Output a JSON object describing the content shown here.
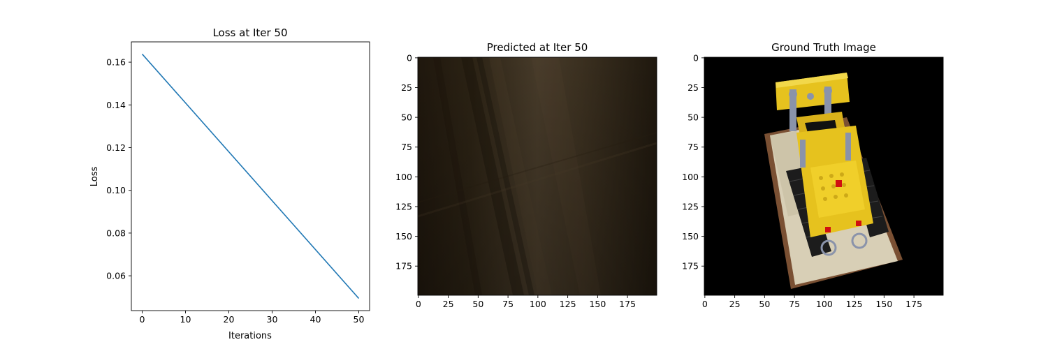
{
  "chart_data": [
    {
      "type": "line",
      "title": "Loss at Iter 50",
      "xlabel": "Iterations",
      "ylabel": "Loss",
      "xlim": [
        -2.5,
        52.5
      ],
      "ylim": [
        0.0437,
        0.1695
      ],
      "xticks": [
        0,
        10,
        20,
        30,
        40,
        50
      ],
      "xtick_labels": [
        "0",
        "10",
        "20",
        "30",
        "40",
        "50"
      ],
      "yticks": [
        0.06,
        0.08,
        0.1,
        0.12,
        0.14,
        0.16
      ],
      "ytick_labels": [
        "0.06",
        "0.08",
        "0.10",
        "0.12",
        "0.14",
        "0.16"
      ],
      "series": [
        {
          "x": [
            0,
            50
          ],
          "y": [
            0.1638,
            0.0494
          ],
          "color": "#1f77b4"
        }
      ],
      "grid": false
    },
    {
      "type": "image",
      "title": "Predicted at Iter 50",
      "xlim": [
        -0.5,
        199.5
      ],
      "ylim": [
        199.5,
        -0.5
      ],
      "xticks": [
        0,
        25,
        50,
        75,
        100,
        125,
        150,
        175
      ],
      "xtick_labels": [
        "0",
        "25",
        "50",
        "75",
        "100",
        "125",
        "150",
        "175"
      ],
      "yticks": [
        0,
        25,
        50,
        75,
        100,
        125,
        150,
        175
      ],
      "ytick_labels": [
        "0",
        "25",
        "50",
        "75",
        "100",
        "125",
        "150",
        "175"
      ],
      "content": "blurry dark brown rendering with diagonal streaks",
      "colors": {
        "dark": "#1e160c",
        "mid": "#3f3424",
        "light": "#4d4232"
      }
    },
    {
      "type": "image",
      "title": "Ground Truth Image",
      "xlim": [
        -0.5,
        199.5
      ],
      "ylim": [
        199.5,
        -0.5
      ],
      "xticks": [
        0,
        25,
        50,
        75,
        100,
        125,
        150,
        175
      ],
      "xtick_labels": [
        "0",
        "25",
        "50",
        "75",
        "100",
        "125",
        "150",
        "175"
      ],
      "yticks": [
        0,
        25,
        50,
        75,
        100,
        125,
        150,
        175
      ],
      "ytick_labels": [
        "0",
        "25",
        "50",
        "75",
        "100",
        "125",
        "150",
        "175"
      ],
      "content": "yellow lego bulldozer on black background",
      "colors": {
        "background": "#000000",
        "yellow": "#e6c21e",
        "base": "#d8cfb6",
        "tracks": "#1c1c1c",
        "brown": "#7a5033",
        "gray": "#8a93aa",
        "red": "#d01010"
      }
    }
  ]
}
